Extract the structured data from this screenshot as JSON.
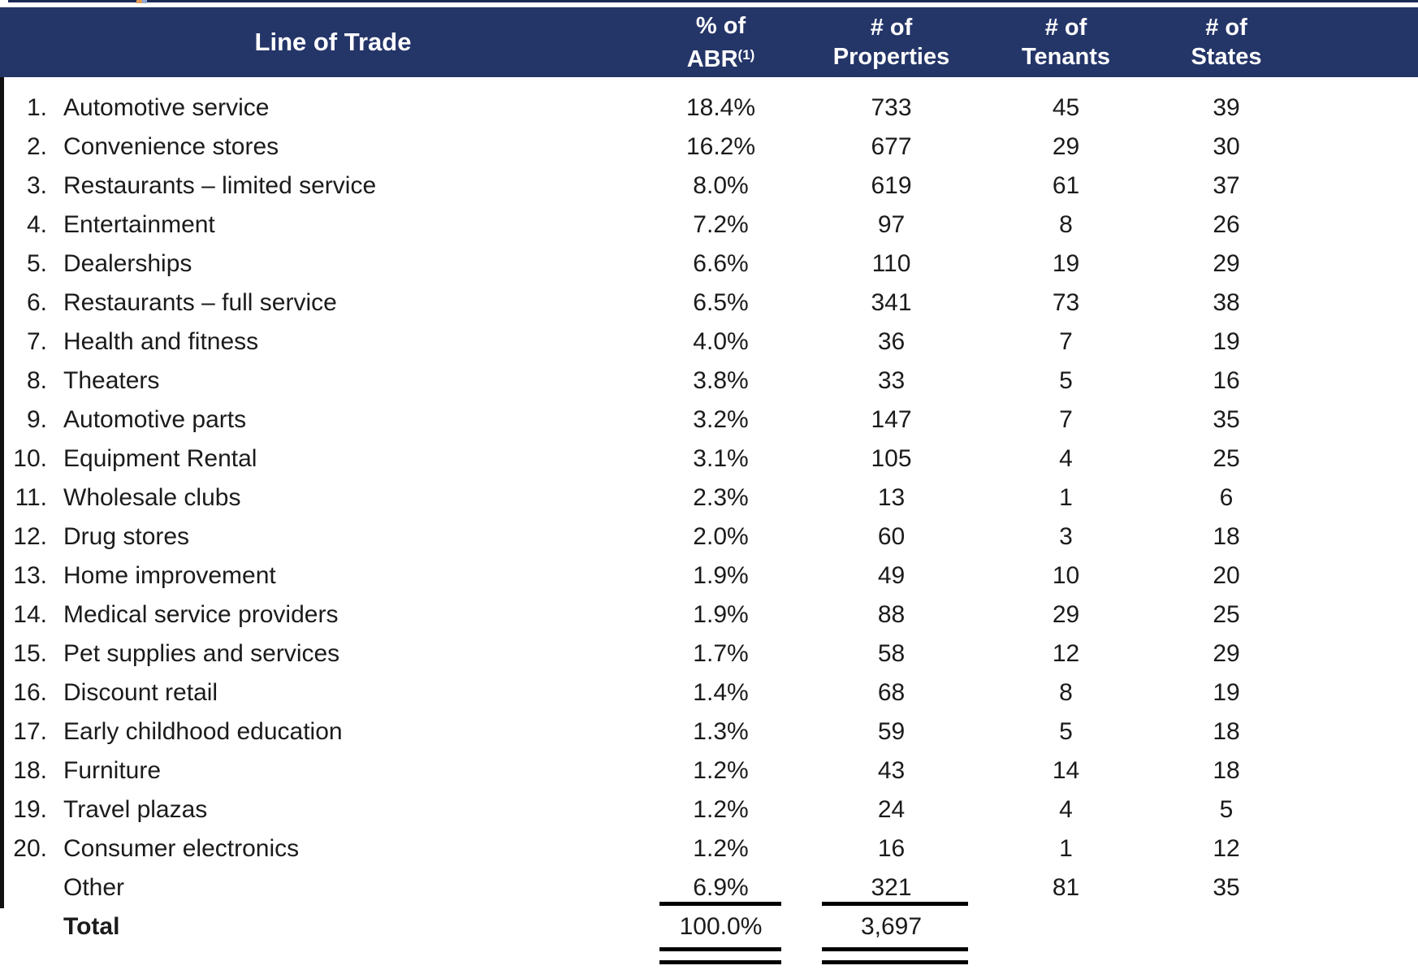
{
  "colors": {
    "header_bg": "#243568",
    "header_text": "#ffffff",
    "body_text": "#1b1b1b",
    "rule_color": "#000000"
  },
  "table": {
    "header": {
      "line_of_trade": "Line of Trade",
      "abr": [
        "% of",
        "ABR"
      ],
      "abr_sup": "(1)",
      "properties": [
        "# of",
        "Properties"
      ],
      "tenants": [
        "# of",
        "Tenants"
      ],
      "states": [
        "# of",
        "States"
      ]
    },
    "rows": [
      {
        "rank": "1.",
        "name": "Automotive service",
        "abr": "18.4%",
        "properties": "733",
        "tenants": "45",
        "states": "39"
      },
      {
        "rank": "2.",
        "name": "Convenience stores",
        "abr": "16.2%",
        "properties": "677",
        "tenants": "29",
        "states": "30"
      },
      {
        "rank": "3.",
        "name": "Restaurants – limited service",
        "abr": "8.0%",
        "properties": "619",
        "tenants": "61",
        "states": "37"
      },
      {
        "rank": "4.",
        "name": "Entertainment",
        "abr": "7.2%",
        "properties": "97",
        "tenants": "8",
        "states": "26"
      },
      {
        "rank": "5.",
        "name": "Dealerships",
        "abr": "6.6%",
        "properties": "110",
        "tenants": "19",
        "states": "29"
      },
      {
        "rank": "6.",
        "name": "Restaurants – full service",
        "abr": "6.5%",
        "properties": "341",
        "tenants": "73",
        "states": "38"
      },
      {
        "rank": "7.",
        "name": "Health and fitness",
        "abr": "4.0%",
        "properties": "36",
        "tenants": "7",
        "states": "19"
      },
      {
        "rank": "8.",
        "name": "Theaters",
        "abr": "3.8%",
        "properties": "33",
        "tenants": "5",
        "states": "16"
      },
      {
        "rank": "9.",
        "name": "Automotive parts",
        "abr": "3.2%",
        "properties": "147",
        "tenants": "7",
        "states": "35"
      },
      {
        "rank": "10.",
        "name": "Equipment Rental",
        "abr": "3.1%",
        "properties": "105",
        "tenants": "4",
        "states": "25"
      },
      {
        "rank": "11.",
        "name": "Wholesale clubs",
        "abr": "2.3%",
        "properties": "13",
        "tenants": "1",
        "states": "6"
      },
      {
        "rank": "12.",
        "name": "Drug stores",
        "abr": "2.0%",
        "properties": "60",
        "tenants": "3",
        "states": "18"
      },
      {
        "rank": "13.",
        "name": "Home improvement",
        "abr": "1.9%",
        "properties": "49",
        "tenants": "10",
        "states": "20"
      },
      {
        "rank": "14.",
        "name": "Medical service providers",
        "abr": "1.9%",
        "properties": "88",
        "tenants": "29",
        "states": "25"
      },
      {
        "rank": "15.",
        "name": "Pet supplies and services",
        "abr": "1.7%",
        "properties": "58",
        "tenants": "12",
        "states": "29"
      },
      {
        "rank": "16.",
        "name": "Discount retail",
        "abr": "1.4%",
        "properties": "68",
        "tenants": "8",
        "states": "19"
      },
      {
        "rank": "17.",
        "name": "Early childhood education",
        "abr": "1.3%",
        "properties": "59",
        "tenants": "5",
        "states": "18"
      },
      {
        "rank": "18.",
        "name": "Furniture",
        "abr": "1.2%",
        "properties": "43",
        "tenants": "14",
        "states": "18"
      },
      {
        "rank": "19.",
        "name": "Travel plazas",
        "abr": "1.2%",
        "properties": "24",
        "tenants": "4",
        "states": "5"
      },
      {
        "rank": "20.",
        "name": "Consumer electronics",
        "abr": "1.2%",
        "properties": "16",
        "tenants": "1",
        "states": "12"
      },
      {
        "rank": "",
        "name": "Other",
        "abr": "6.9%",
        "properties": "321",
        "tenants": "81",
        "states": "35"
      }
    ],
    "total": {
      "label": "Total",
      "abr": "100.0%",
      "properties": "3,697",
      "tenants": "",
      "states": ""
    }
  }
}
